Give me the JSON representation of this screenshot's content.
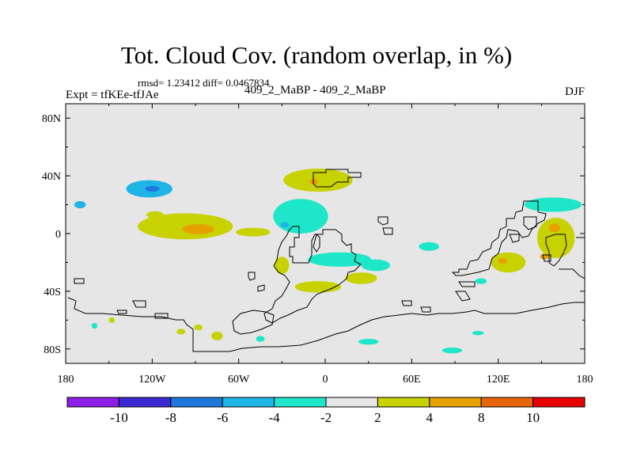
{
  "title": "Tot. Cloud Cov. (random overlap, in %)",
  "stats": "rmsd= 1.23412 diff= 0.0467834",
  "experiment": "Expt = tfKEe-tfJAe",
  "runs": "409_2_MaBP - 409_2_MaBP",
  "season": "DJF",
  "map": {
    "projection": "cylindrical-equidistant",
    "lon_range": [
      -180,
      180
    ],
    "lat_range": [
      -90,
      90
    ],
    "x_ticks": [
      {
        "lon": -180,
        "label": "180"
      },
      {
        "lon": -120,
        "label": "120W"
      },
      {
        "lon": -60,
        "label": "60W"
      },
      {
        "lon": 0,
        "label": "0"
      },
      {
        "lon": 60,
        "label": "60E"
      },
      {
        "lon": 120,
        "label": "120E"
      },
      {
        "lon": 180,
        "label": "180"
      }
    ],
    "y_ticks": [
      {
        "lat": 80,
        "label": "80N"
      },
      {
        "lat": 40,
        "label": "40N"
      },
      {
        "lat": 0,
        "label": "0"
      },
      {
        "lat": -40,
        "label": "40S"
      },
      {
        "lat": -80,
        "label": "80S"
      }
    ],
    "background_color": "#e6e6e6",
    "coastline_color": "#000000"
  },
  "colorbar": {
    "colors": [
      "#8d1ee6",
      "#3c28d2",
      "#1e78dc",
      "#1eb4e6",
      "#1ee6c8",
      "#e6e6e6",
      "#c8d200",
      "#e6a000",
      "#e6640a",
      "#e60000"
    ],
    "labels": [
      "-10",
      "-8",
      "-6",
      "-4",
      "-2",
      "2",
      "4",
      "8",
      "10"
    ]
  },
  "anomalies": [
    {
      "lon": -170,
      "lat": 20,
      "rx": 4,
      "ry": 2.5,
      "level": "-4"
    },
    {
      "lon": -122,
      "lat": 31,
      "rx": 16,
      "ry": 6,
      "level": "-4"
    },
    {
      "lon": -120,
      "lat": 31,
      "rx": 5,
      "ry": 2,
      "level": "-6"
    },
    {
      "lon": -118,
      "lat": 13,
      "rx": 6,
      "ry": 2.5,
      "level": "2"
    },
    {
      "lon": -97,
      "lat": 5,
      "rx": 33,
      "ry": 9,
      "level": "2"
    },
    {
      "lon": -88,
      "lat": 3,
      "rx": 11,
      "ry": 3.5,
      "level": "4"
    },
    {
      "lon": -50,
      "lat": 1,
      "rx": 12,
      "ry": 3,
      "level": "2"
    },
    {
      "lon": -5,
      "lat": 37,
      "rx": 24,
      "ry": 8,
      "level": "2"
    },
    {
      "lon": -8,
      "lat": 36,
      "rx": 3,
      "ry": 2,
      "level": "4"
    },
    {
      "lon": -17,
      "lat": 12,
      "rx": 19,
      "ry": 12,
      "level": "-2"
    },
    {
      "lon": -28,
      "lat": 6,
      "rx": 3,
      "ry": 2,
      "level": "-4"
    },
    {
      "lon": 10,
      "lat": -18,
      "rx": 22,
      "ry": 5,
      "level": "-2"
    },
    {
      "lon": 35,
      "lat": -22,
      "rx": 10,
      "ry": 4,
      "level": "-2"
    },
    {
      "lon": 25,
      "lat": -31,
      "rx": 11,
      "ry": 4,
      "level": "2"
    },
    {
      "lon": -30,
      "lat": -22,
      "rx": 5,
      "ry": 6,
      "level": "2"
    },
    {
      "lon": -5,
      "lat": -37,
      "rx": 16,
      "ry": 4,
      "level": "2"
    },
    {
      "lon": 72,
      "lat": -9,
      "rx": 7,
      "ry": 3,
      "level": "-2"
    },
    {
      "lon": 127,
      "lat": -20,
      "rx": 12,
      "ry": 7,
      "level": "2"
    },
    {
      "lon": 123,
      "lat": -19,
      "rx": 3,
      "ry": 2,
      "level": "4"
    },
    {
      "lon": 108,
      "lat": -33,
      "rx": 4,
      "ry": 2,
      "level": "-2"
    },
    {
      "lon": 160,
      "lat": -3,
      "rx": 13,
      "ry": 14,
      "level": "2"
    },
    {
      "lon": 159,
      "lat": 4,
      "rx": 4,
      "ry": 3,
      "level": "4"
    },
    {
      "lon": 152,
      "lat": -16,
      "rx": 3,
      "ry": 2,
      "level": "4"
    },
    {
      "lon": 158,
      "lat": 20,
      "rx": 20,
      "ry": 5,
      "level": "-2"
    },
    {
      "lon": -160,
      "lat": -64,
      "rx": 2,
      "ry": 2,
      "level": "-2"
    },
    {
      "lon": -148,
      "lat": -60,
      "rx": 2,
      "ry": 2,
      "level": "2"
    },
    {
      "lon": -100,
      "lat": -68,
      "rx": 3,
      "ry": 2,
      "level": "2"
    },
    {
      "lon": -88,
      "lat": -65,
      "rx": 3,
      "ry": 2,
      "level": "2"
    },
    {
      "lon": -75,
      "lat": -71,
      "rx": 4,
      "ry": 3,
      "level": "2"
    },
    {
      "lon": -45,
      "lat": -73,
      "rx": 3,
      "ry": 2,
      "level": "-2"
    },
    {
      "lon": 30,
      "lat": -75,
      "rx": 7,
      "ry": 2,
      "level": "-2"
    },
    {
      "lon": 88,
      "lat": -81,
      "rx": 7,
      "ry": 2,
      "level": "-2"
    },
    {
      "lon": 106,
      "lat": -69,
      "rx": 4,
      "ry": 1.5,
      "level": "-2"
    }
  ]
}
